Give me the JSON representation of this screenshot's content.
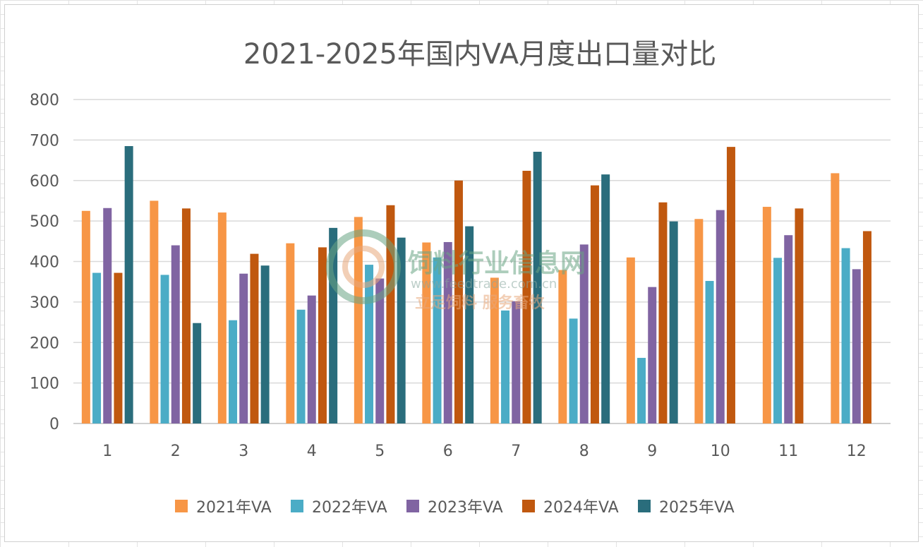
{
  "chart_data": {
    "type": "bar",
    "title": "2021-2025年国内VA月度出口量对比",
    "xlabel": "",
    "ylabel": "",
    "categories": [
      "1",
      "2",
      "3",
      "4",
      "5",
      "6",
      "7",
      "8",
      "9",
      "10",
      "11",
      "12"
    ],
    "ylim": [
      0,
      800
    ],
    "yticks": [
      0,
      100,
      200,
      300,
      400,
      500,
      600,
      700,
      800
    ],
    "grid": true,
    "legend_position": "bottom",
    "series": [
      {
        "name": "2021年VA",
        "color": "#f79646",
        "values": [
          525,
          550,
          521,
          445,
          510,
          447,
          360,
          379,
          410,
          505,
          535,
          618
        ]
      },
      {
        "name": "2022年VA",
        "color": "#4bacc6",
        "values": [
          372,
          367,
          255,
          281,
          392,
          410,
          279,
          259,
          162,
          352,
          409,
          433
        ]
      },
      {
        "name": "2023年VA",
        "color": "#8064a2",
        "values": [
          532,
          440,
          370,
          316,
          358,
          448,
          302,
          442,
          337,
          527,
          465,
          381
        ]
      },
      {
        "name": "2024年VA",
        "color": "#c0580f",
        "values": [
          372,
          531,
          419,
          435,
          539,
          600,
          624,
          588,
          546,
          683,
          531,
          475
        ]
      },
      {
        "name": "2025年VA",
        "color": "#2a6d7c",
        "values": [
          685,
          248,
          390,
          483,
          459,
          487,
          671,
          615,
          499,
          null,
          null,
          null
        ]
      }
    ]
  },
  "watermark": {
    "name": "饲料行业信息网",
    "url": "www.feedtrade.com.cn",
    "slogan": "立足饲料 服务畜牧"
  }
}
